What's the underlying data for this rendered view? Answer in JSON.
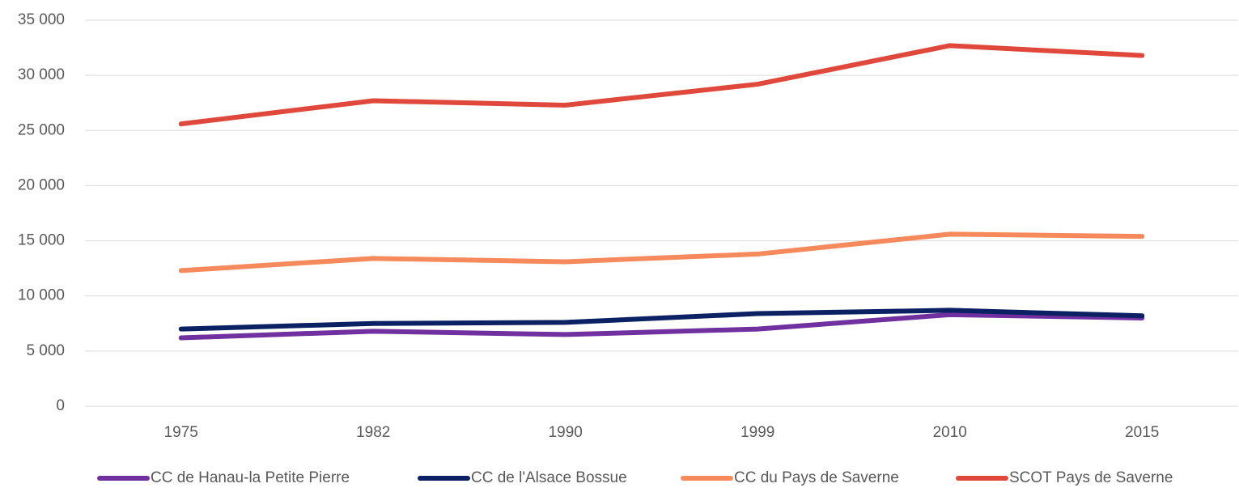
{
  "chart_data": {
    "type": "line",
    "categories": [
      "1975",
      "1982",
      "1990",
      "1999",
      "2010",
      "2015"
    ],
    "series": [
      {
        "name": "CC de Hanau-la Petite Pierre",
        "color": "#7030a0",
        "values": [
          6200,
          6800,
          6500,
          7000,
          8300,
          8000
        ]
      },
      {
        "name": "CC de l'Alsace Bossue",
        "color": "#0b2163",
        "values": [
          7000,
          7500,
          7600,
          8400,
          8700,
          8200
        ]
      },
      {
        "name": "CC du Pays de Saverne",
        "color": "#f78a5c",
        "values": [
          12300,
          13400,
          13100,
          13800,
          15600,
          15400
        ]
      },
      {
        "name": "SCOT Pays de Saverne",
        "color": "#e0483b",
        "values": [
          25600,
          27700,
          27300,
          29200,
          32700,
          31800
        ]
      }
    ],
    "ylim": [
      0,
      35000
    ],
    "yticks": [
      0,
      {
        "value": 5000,
        "label": "5 000"
      },
      {
        "value": 10000,
        "label": "10 000"
      },
      {
        "value": 15000,
        "label": "15 000"
      },
      {
        "value": 20000,
        "label": "20 000"
      },
      {
        "value": 25000,
        "label": "25 000"
      },
      {
        "value": 30000,
        "label": "30 000"
      },
      {
        "value": 35000,
        "label": "35 000"
      }
    ],
    "grid": true,
    "legend": "bottom"
  }
}
